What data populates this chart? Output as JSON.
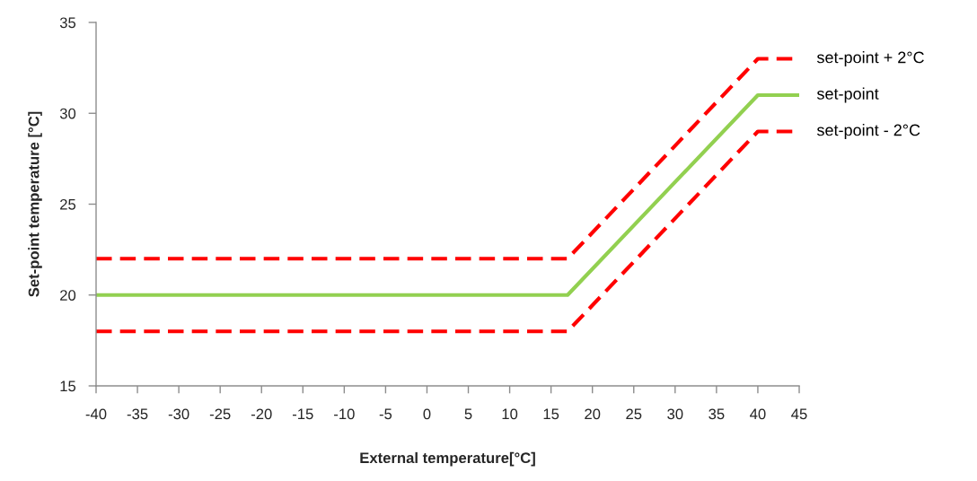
{
  "chart_data": {
    "type": "line",
    "xlabel": "External temperature[°C]",
    "ylabel": "Set-point temperature [°C]",
    "x": [
      -40,
      17,
      40,
      45
    ],
    "series": [
      {
        "name": "set-point + 2°C",
        "color": "#ff0000",
        "line_style": "dashed",
        "values": [
          22,
          22,
          33,
          33
        ]
      },
      {
        "name": "set-point",
        "color": "#92d050",
        "line_style": "solid",
        "values": [
          20,
          20,
          31,
          31
        ]
      },
      {
        "name": "set-point - 2°C",
        "color": "#ff0000",
        "line_style": "dashed",
        "values": [
          18,
          18,
          29,
          29
        ]
      }
    ],
    "xlim": [
      -40,
      45
    ],
    "xticks": [
      -40,
      -35,
      -30,
      -25,
      -20,
      -15,
      -10,
      -5,
      0,
      5,
      10,
      15,
      20,
      25,
      30,
      35,
      40,
      45
    ],
    "ylim": [
      15,
      35
    ],
    "yticks": [
      15,
      20,
      25,
      30,
      35
    ]
  }
}
